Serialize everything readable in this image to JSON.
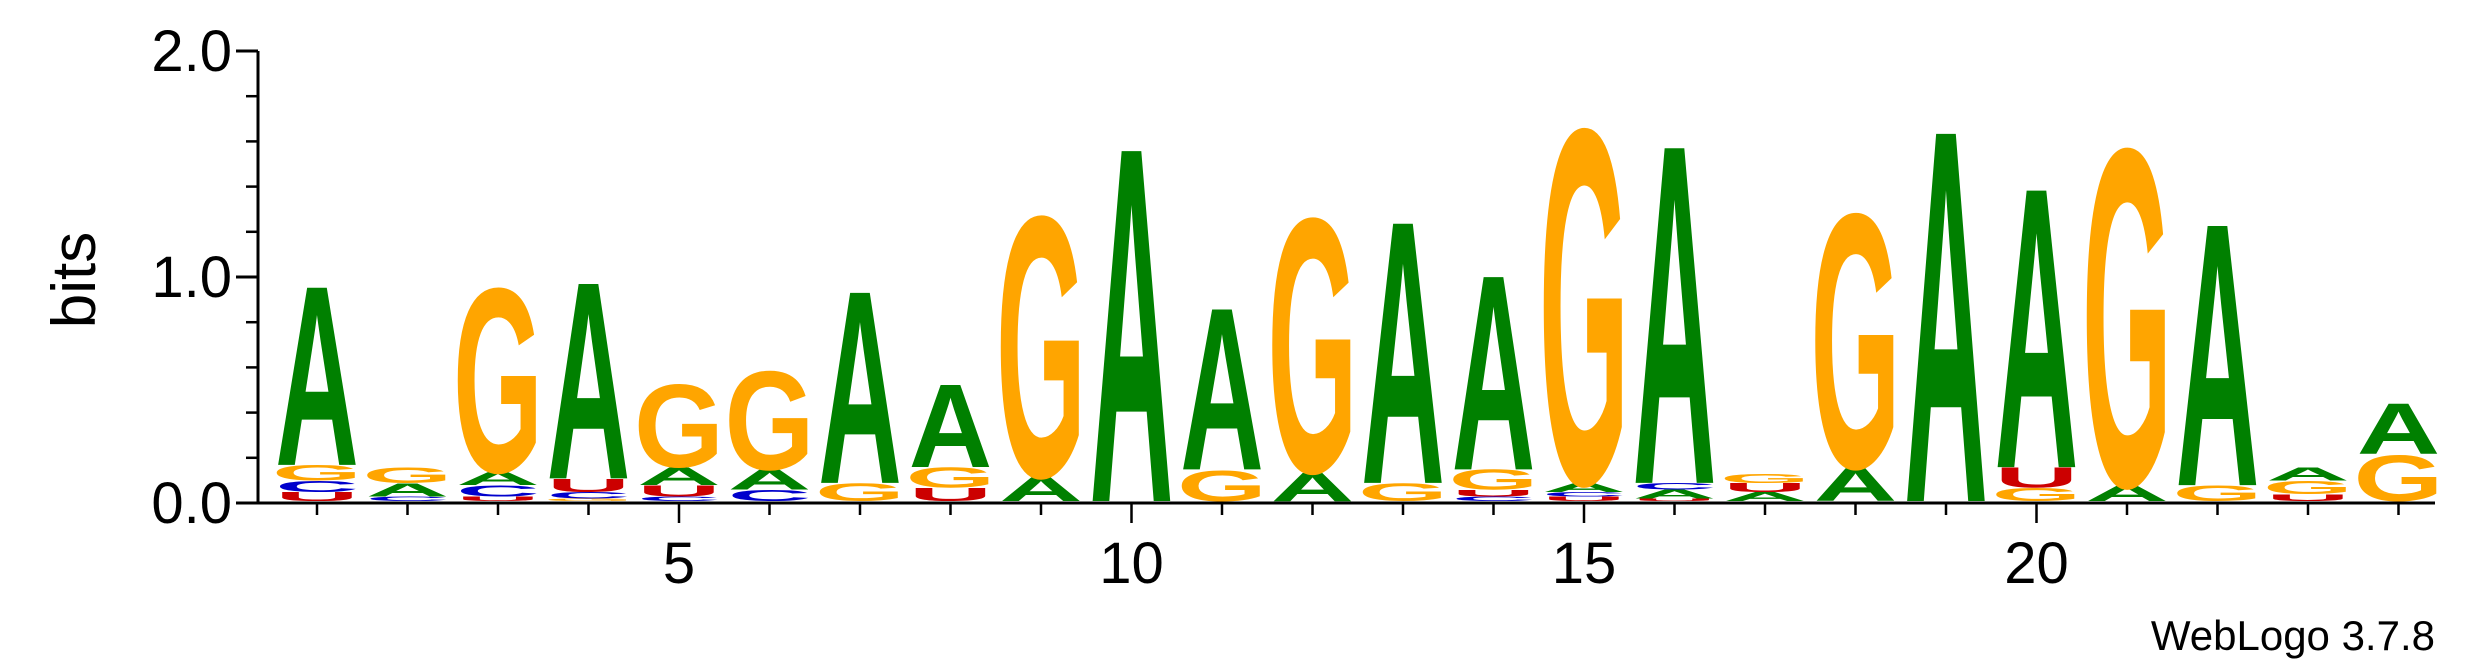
{
  "chart_data": {
    "type": "sequence-logo",
    "title": "",
    "xlabel": "",
    "ylabel": "bits",
    "ylim": [
      0,
      2.0
    ],
    "yticks": [
      {
        "value": 0.0,
        "label": "0.0"
      },
      {
        "value": 1.0,
        "label": "1.0"
      },
      {
        "value": 2.0,
        "label": "2.0"
      }
    ],
    "xticks": [
      {
        "value": 5,
        "label": "5"
      },
      {
        "value": 10,
        "label": "10"
      },
      {
        "value": 15,
        "label": "15"
      },
      {
        "value": 20,
        "label": "20"
      }
    ],
    "positions": 24,
    "colors": {
      "A": "#008000",
      "G": "#FFA500",
      "C": "#0000CC",
      "U": "#CC0000"
    },
    "columns": [
      [
        [
          "U",
          0.04
        ],
        [
          "C",
          0.05
        ],
        [
          "G",
          0.07
        ],
        [
          "A",
          0.82
        ]
      ],
      [
        [
          "C",
          0.02
        ],
        [
          "A",
          0.06
        ],
        [
          "G",
          0.07
        ]
      ],
      [
        [
          "U",
          0.02
        ],
        [
          "C",
          0.05
        ],
        [
          "A",
          0.06
        ],
        [
          "G",
          0.84
        ]
      ],
      [
        [
          "G",
          0.01
        ],
        [
          "C",
          0.03
        ],
        [
          "U",
          0.06
        ],
        [
          "A",
          0.9
        ]
      ],
      [
        [
          "C",
          0.02
        ],
        [
          "U",
          0.05
        ],
        [
          "A",
          0.08
        ],
        [
          "G",
          0.38
        ]
      ],
      [
        [
          "C",
          0.05
        ],
        [
          "A",
          0.09
        ],
        [
          "G",
          0.45
        ]
      ],
      [
        [
          "G",
          0.08
        ],
        [
          "A",
          0.88
        ]
      ],
      [
        [
          "U",
          0.06
        ],
        [
          "G",
          0.09
        ],
        [
          "A",
          0.38
        ]
      ],
      [
        [
          "A",
          0.11
        ],
        [
          "G",
          1.19
        ]
      ],
      [
        [
          "A",
          1.62
        ]
      ],
      [
        [
          "G",
          0.14
        ],
        [
          "A",
          0.74
        ]
      ],
      [
        [
          "A",
          0.13
        ],
        [
          "G",
          1.16
        ]
      ],
      [
        [
          "G",
          0.08
        ],
        [
          "A",
          1.2
        ]
      ],
      [
        [
          "C",
          0.02
        ],
        [
          "U",
          0.03
        ],
        [
          "G",
          0.09
        ],
        [
          "A",
          0.89
        ]
      ],
      [
        [
          "U",
          0.02
        ],
        [
          "C",
          0.02
        ],
        [
          "A",
          0.04
        ],
        [
          "G",
          1.62
        ]
      ],
      [
        [
          "U",
          0.01
        ],
        [
          "A",
          0.04
        ],
        [
          "C",
          0.03
        ],
        [
          "A",
          1.55
        ]
      ],
      [
        [
          "A",
          0.04
        ],
        [
          "U",
          0.04
        ],
        [
          "G",
          0.04
        ]
      ],
      [
        [
          "A",
          0.15
        ],
        [
          "G",
          1.16
        ]
      ],
      [
        [
          "A",
          1.7
        ]
      ],
      [
        [
          "G",
          0.06
        ],
        [
          "U",
          0.09
        ],
        [
          "A",
          1.28
        ]
      ],
      [
        [
          "A",
          0.07
        ],
        [
          "G",
          1.54
        ]
      ],
      [
        [
          "G",
          0.07
        ],
        [
          "A",
          1.2
        ]
      ],
      [
        [
          "U",
          0.03
        ],
        [
          "G",
          0.06
        ],
        [
          "A",
          0.06
        ]
      ],
      [
        [
          "G",
          0.21
        ],
        [
          "A",
          0.23
        ]
      ]
    ]
  },
  "credit": "WebLogo 3.7.8"
}
